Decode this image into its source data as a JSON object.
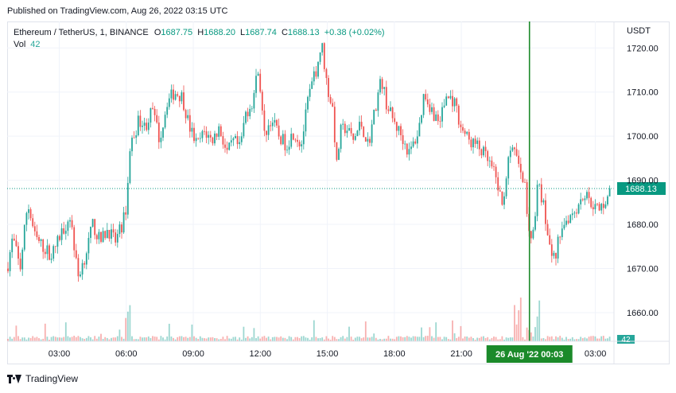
{
  "published": "Published on TradingView.com, Aug 26, 2022 03:15 UTC",
  "legend": {
    "symbol": "Ethereum / TetherUS, 1, BINANCE",
    "open_label": "O",
    "open": "1687.75",
    "high_label": "H",
    "high": "1688.20",
    "low_label": "L",
    "low": "1687.74",
    "close_label": "C",
    "close": "1688.13",
    "change": "+0.38 (+0.02%)",
    "vol_label": "Vol",
    "vol": "42"
  },
  "footer_brand": "TradingView",
  "colors": {
    "up": "#26a69a",
    "down": "#ef5350",
    "crosshair": "#1b8a2a",
    "price_line": "#089981",
    "grid": "#f0f3fa"
  },
  "chart_data": {
    "type": "candlestick",
    "currency_label": "USDT",
    "ylim": [
      1653.5,
      1726
    ],
    "y_ticks": [
      1720,
      1710,
      1700,
      1690,
      1680,
      1670,
      1660
    ],
    "y_tick_labels": [
      "1720.00",
      "1710.00",
      "1700.00",
      "1690.00",
      "1680.00",
      "1670.00",
      "1660.00"
    ],
    "x_ticks": [
      {
        "label": "03:00",
        "t": 180
      },
      {
        "label": "06:00",
        "t": 360
      },
      {
        "label": "09:00",
        "t": 540
      },
      {
        "label": "12:00",
        "t": 720
      },
      {
        "label": "15:00",
        "t": 900
      },
      {
        "label": "18:00",
        "t": 1080
      },
      {
        "label": "21:00",
        "t": 1260
      },
      {
        "label": "03:00",
        "t": 1620
      }
    ],
    "xlim": [
      40,
      1670
    ],
    "last_price": 1688.13,
    "last_price_label": "1688.13",
    "last_volume_label": "42",
    "crosshair": {
      "t": 1443,
      "label": "26 Aug '22   00:03"
    },
    "price_path": [
      [
        40,
        1670
      ],
      [
        55,
        1677
      ],
      [
        75,
        1670
      ],
      [
        95,
        1685
      ],
      [
        115,
        1677
      ],
      [
        135,
        1675
      ],
      [
        160,
        1673
      ],
      [
        185,
        1678
      ],
      [
        210,
        1682
      ],
      [
        230,
        1668
      ],
      [
        250,
        1673
      ],
      [
        270,
        1680
      ],
      [
        290,
        1676
      ],
      [
        310,
        1679
      ],
      [
        330,
        1676
      ],
      [
        350,
        1680
      ],
      [
        360,
        1684
      ],
      [
        370,
        1697
      ],
      [
        380,
        1700
      ],
      [
        395,
        1704
      ],
      [
        410,
        1702
      ],
      [
        430,
        1706
      ],
      [
        450,
        1699
      ],
      [
        470,
        1708
      ],
      [
        490,
        1710
      ],
      [
        510,
        1709
      ],
      [
        530,
        1702
      ],
      [
        550,
        1698
      ],
      [
        570,
        1701
      ],
      [
        590,
        1699
      ],
      [
        610,
        1702
      ],
      [
        630,
        1696
      ],
      [
        650,
        1699
      ],
      [
        665,
        1697
      ],
      [
        680,
        1705
      ],
      [
        700,
        1708
      ],
      [
        715,
        1716
      ],
      [
        730,
        1700
      ],
      [
        750,
        1704
      ],
      [
        770,
        1700
      ],
      [
        790,
        1698
      ],
      [
        810,
        1701
      ],
      [
        830,
        1698
      ],
      [
        850,
        1709
      ],
      [
        870,
        1715
      ],
      [
        885,
        1721
      ],
      [
        900,
        1711
      ],
      [
        915,
        1706
      ],
      [
        925,
        1693
      ],
      [
        935,
        1701
      ],
      [
        950,
        1702
      ],
      [
        970,
        1699
      ],
      [
        990,
        1703
      ],
      [
        1010,
        1698
      ],
      [
        1030,
        1707
      ],
      [
        1045,
        1713
      ],
      [
        1060,
        1707
      ],
      [
        1080,
        1703
      ],
      [
        1100,
        1700
      ],
      [
        1120,
        1696
      ],
      [
        1145,
        1701
      ],
      [
        1160,
        1710
      ],
      [
        1180,
        1706
      ],
      [
        1200,
        1703
      ],
      [
        1220,
        1709
      ],
      [
        1240,
        1708
      ],
      [
        1260,
        1702
      ],
      [
        1280,
        1699
      ],
      [
        1300,
        1698
      ],
      [
        1320,
        1696
      ],
      [
        1340,
        1693
      ],
      [
        1355,
        1690
      ],
      [
        1370,
        1684
      ],
      [
        1385,
        1694
      ],
      [
        1400,
        1697
      ],
      [
        1415,
        1694
      ],
      [
        1430,
        1689
      ],
      [
        1440,
        1681
      ],
      [
        1450,
        1676
      ],
      [
        1465,
        1689
      ],
      [
        1480,
        1685
      ],
      [
        1495,
        1675
      ],
      [
        1510,
        1672
      ],
      [
        1530,
        1680
      ],
      [
        1550,
        1682
      ],
      [
        1570,
        1684
      ],
      [
        1590,
        1687
      ],
      [
        1610,
        1685
      ],
      [
        1630,
        1683
      ],
      [
        1650,
        1686
      ],
      [
        1665,
        1688
      ]
    ]
  }
}
